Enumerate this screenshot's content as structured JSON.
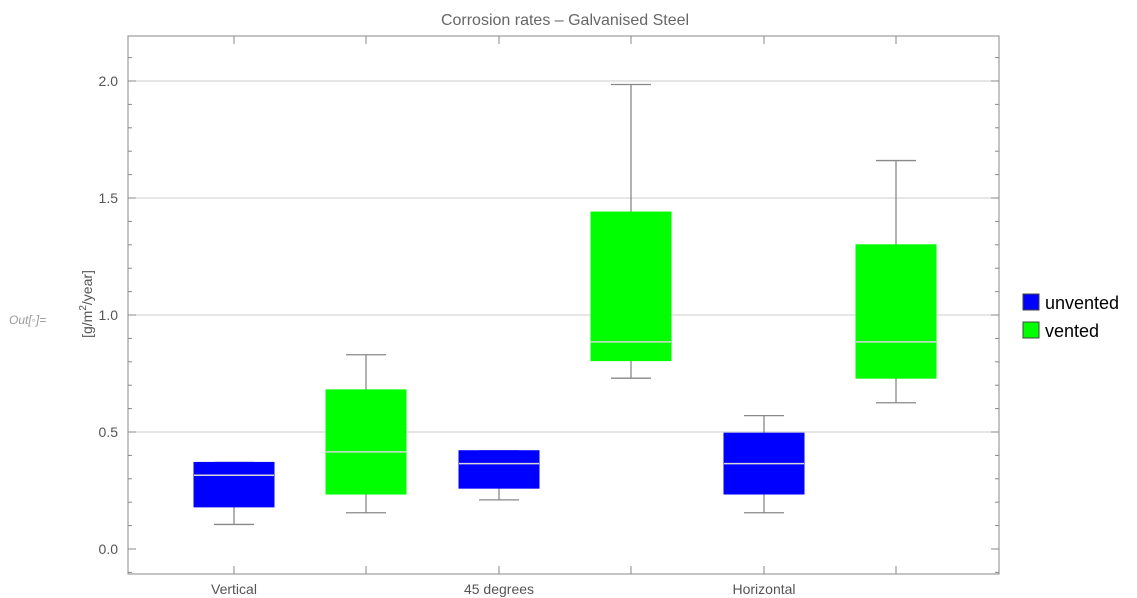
{
  "prompt_label": "Out[◦]=",
  "chart_data": {
    "type": "box",
    "title": "Corrosion rates – Galvanised Steel",
    "xlabel": "",
    "ylabel_prefix": "[g/m",
    "ylabel_sup": "2",
    "ylabel_suffix": "/year]",
    "ylim": [
      -0.1,
      2.2
    ],
    "yticks": [
      0.0,
      0.5,
      1.0,
      1.5,
      2.0
    ],
    "ytick_labels": [
      "0.0",
      "0.5",
      "1.0",
      "1.5",
      "2.0"
    ],
    "grid": "horizontal",
    "legend_position": "right",
    "categories": [
      "Vertical",
      "45 degrees",
      "Horizontal"
    ],
    "series": [
      {
        "name": "unvented",
        "color": "#0000ff",
        "boxes": [
          {
            "category": "Vertical",
            "min": 0.105,
            "q1": 0.18,
            "median": 0.315,
            "q3": 0.37,
            "max": 0.37
          },
          {
            "category": "45 degrees",
            "min": 0.21,
            "q1": 0.26,
            "median": 0.365,
            "q3": 0.42,
            "max": 0.42
          },
          {
            "category": "Horizontal",
            "min": 0.155,
            "q1": 0.235,
            "median": 0.365,
            "q3": 0.495,
            "max": 0.57
          }
        ]
      },
      {
        "name": "vented",
        "color": "#00ff00",
        "boxes": [
          {
            "category": "Vertical",
            "min": 0.155,
            "q1": 0.235,
            "median": 0.415,
            "q3": 0.68,
            "max": 0.83
          },
          {
            "category": "45 degrees",
            "min": 0.73,
            "q1": 0.805,
            "median": 0.885,
            "q3": 1.44,
            "max": 1.985
          },
          {
            "category": "Horizontal",
            "min": 0.625,
            "q1": 0.73,
            "median": 0.885,
            "q3": 1.3,
            "max": 1.66
          }
        ]
      }
    ]
  }
}
